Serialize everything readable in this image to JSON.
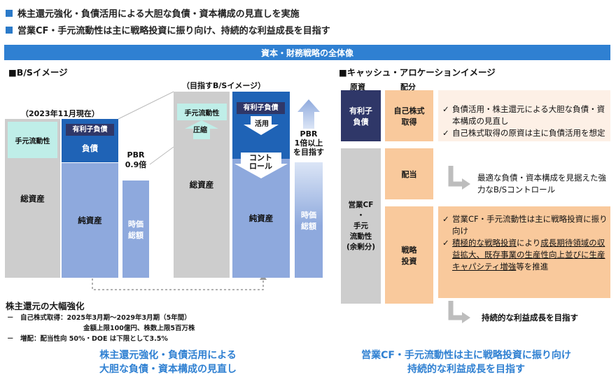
{
  "header": {
    "bullet1": "株主還元強化・負債活用による大胆な負債・資本構成の見直しを実施",
    "bullet2": "営業CF・手元流動性は主に戦略投資に振り向け、持続的な利益成長を目指す"
  },
  "banner": "資本・財務戦略の全体像",
  "bs": {
    "section_title": "■B/Sイメージ",
    "current_label": "（2023年11月現在）",
    "target_label": "（目指すB/Sイメージ）",
    "cash": "手元流動性",
    "debt_tag": "有利子負債",
    "liabilities": "負債",
    "total_assets": "総資産",
    "net_assets": "純資産",
    "pbr_current": "PBR\n0.9倍",
    "market_cap": "時価\n総額",
    "compress": "圧縮",
    "utilize": "活用",
    "control": "コント\nロール",
    "pbr_target": "PBR\n1倍以上\nを目指す"
  },
  "shareholder": {
    "title": "株主還元の大幅強化",
    "line1": "－　自己株式取得：2025年3月期～2029年3月期（5年間）",
    "line2": "金額上限100億円、株数上限5百万株",
    "line3": "－　増配：配当性向 50%・DOE は下限として3.5%"
  },
  "cash_alloc": {
    "section_title": "■キャッシュ・アロケーションイメージ",
    "source_header": "原資",
    "alloc_header": "配分",
    "source_debt": "有利子\n負債",
    "source_cf": "営業CF\n・\n手元\n流動性\n(余剰分)",
    "alloc_buyback": "自己株式\n取得",
    "alloc_dividend": "配当",
    "alloc_strategic": "戦略\n投資",
    "buyback_text1": "負債活用・株主還元による大胆な負債・資本構成の見直し",
    "buyback_text2": "自己株式取得の原資は主に負債活用を想定",
    "dividend_text": "最適な負債・資本構成を見据えた強力なB/Sコントロール",
    "strategic_text1": "営業CF・手元流動性は主に戦略投資に振り向け",
    "strategic_text2a": "積極的な戦略投資",
    "strategic_text2b": "により",
    "strategic_text2c": "成長期待領域の収益拡大、既存事業の生産性向上並びに生産キャパシティ増強",
    "strategic_text2d": "等を推進",
    "growth_text": "持続的な利益成長を目指す",
    "check": "✓"
  },
  "footer": {
    "left": "株主還元強化・負債活用による\n大胆な負債・資本構成の見直し",
    "right": "営業CF・手元流動性は主に戦略投資に振り向け\n持続的な利益成長を目指す"
  },
  "colors": {
    "accent": "#2f80d2",
    "navy": "#2f3768",
    "debt_blue": "#1f63b6",
    "equity_blue": "#8ea9dd",
    "cash_teal": "#bfeee8",
    "alloc_orange": "#f9c99c",
    "alloc_peach": "#fdf0e6"
  }
}
